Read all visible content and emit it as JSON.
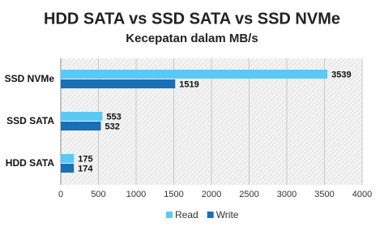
{
  "chart_data": {
    "type": "bar",
    "orientation": "horizontal",
    "title": "HDD SATA vs SSD SATA vs SSD NVMe",
    "subtitle": "Kecepatan dalam MB/s",
    "categories": [
      "SSD NVMe",
      "SSD SATA",
      "HDD SATA"
    ],
    "series": [
      {
        "name": "Read",
        "color": "#5bc8f5",
        "values": [
          3539,
          553,
          175
        ]
      },
      {
        "name": "Write",
        "color": "#1a6fb5",
        "values": [
          1519,
          532,
          174
        ]
      }
    ],
    "xlim": [
      0,
      4000
    ],
    "xticks": [
      0,
      500,
      1000,
      1500,
      2000,
      2500,
      3000,
      3500,
      4000
    ],
    "grid": true,
    "legend": "bottom"
  }
}
